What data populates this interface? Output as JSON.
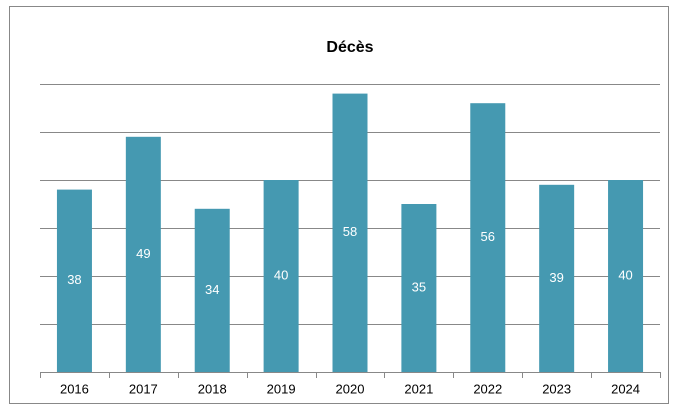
{
  "chart_data": {
    "type": "bar",
    "title": "Décès",
    "categories": [
      "2016",
      "2017",
      "2018",
      "2019",
      "2020",
      "2021",
      "2022",
      "2023",
      "2024"
    ],
    "values": [
      38,
      49,
      34,
      40,
      58,
      35,
      56,
      39,
      40
    ],
    "color": "#4599b1",
    "ylim": [
      0,
      60
    ],
    "yticks": [
      0,
      10,
      20,
      30,
      40,
      50,
      60
    ],
    "grid": true
  }
}
